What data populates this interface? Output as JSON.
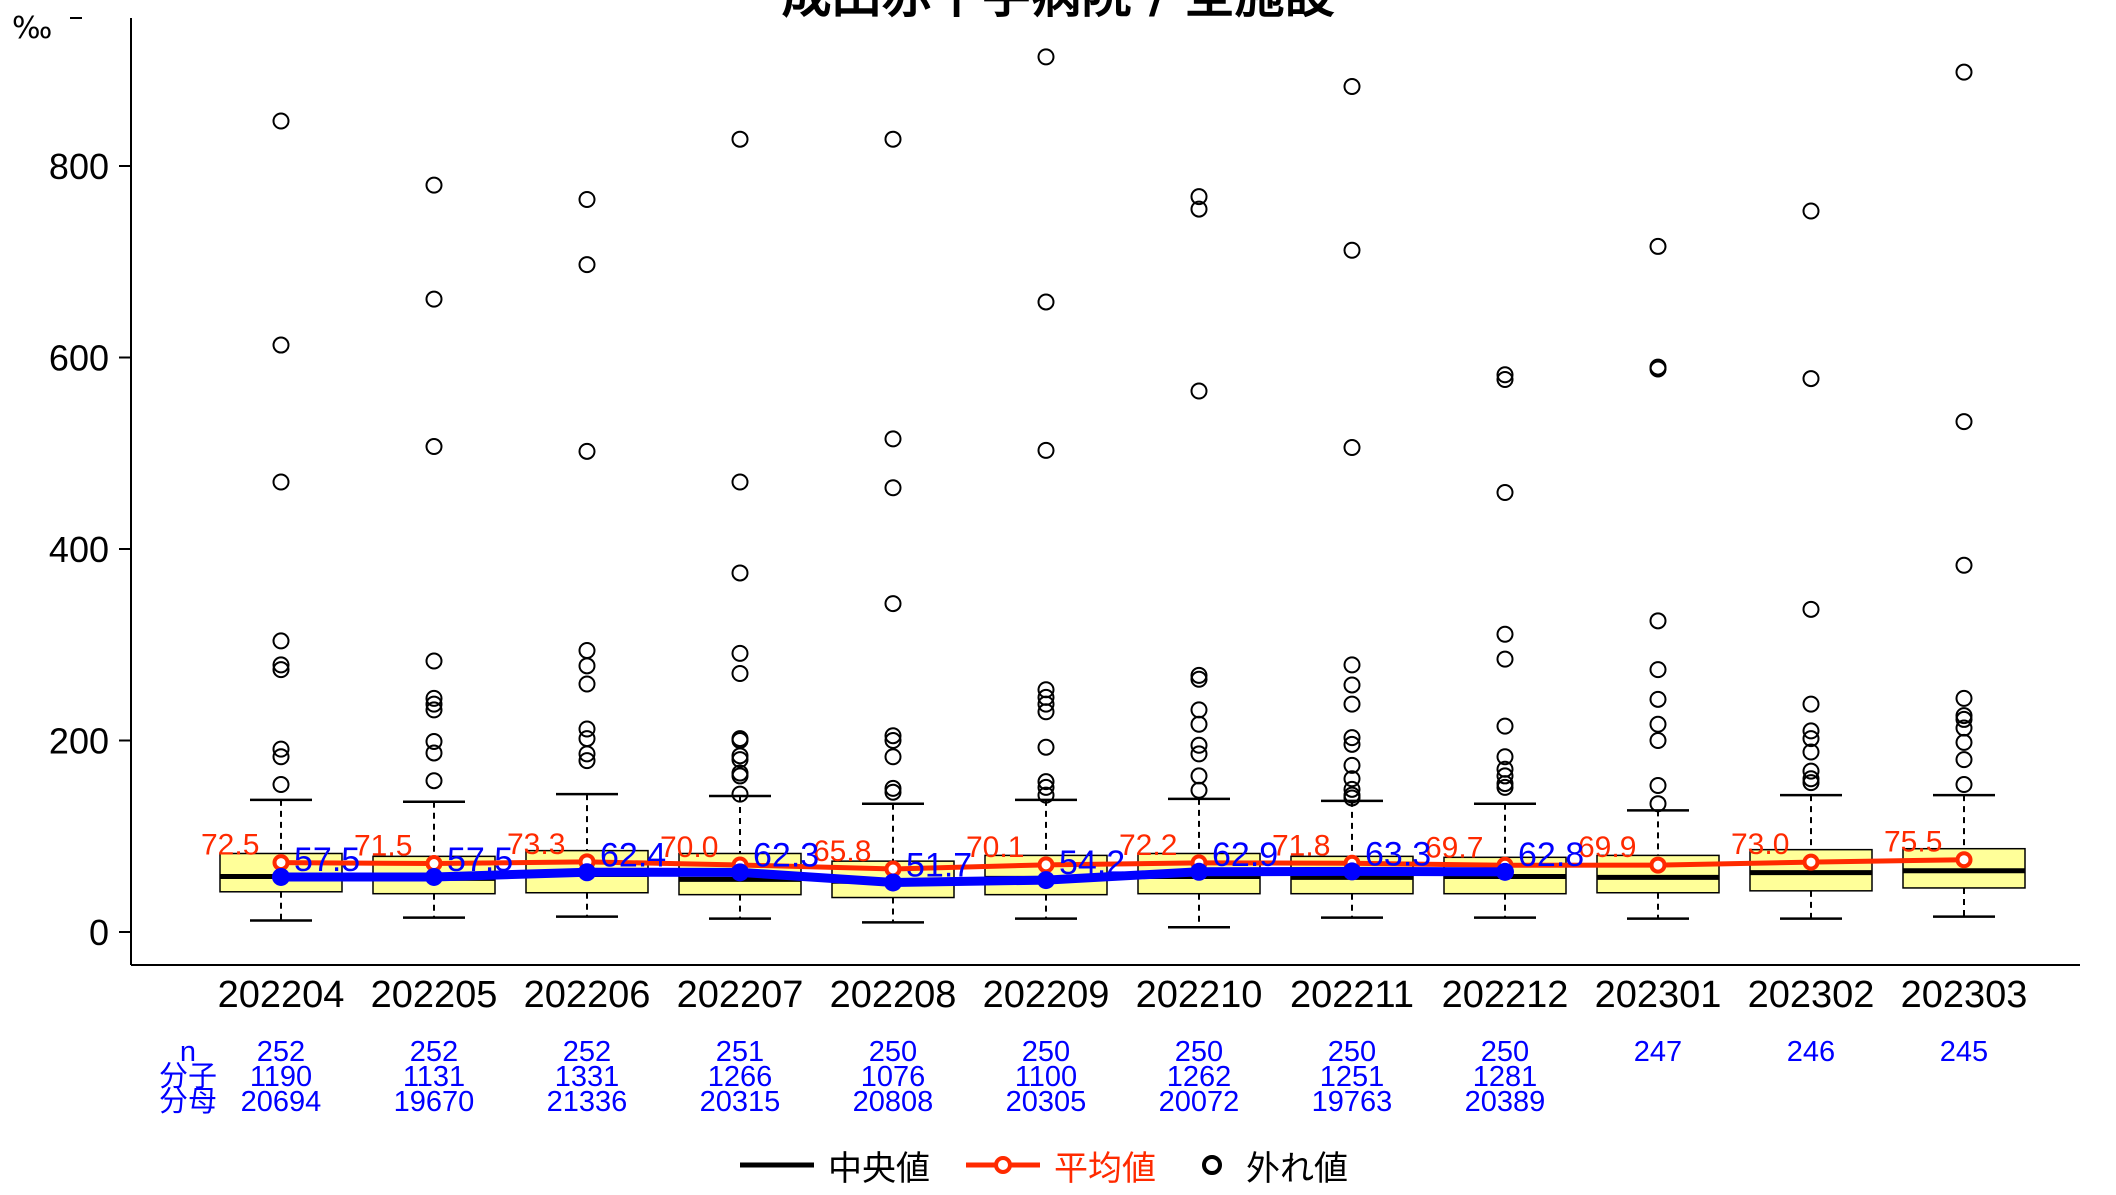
{
  "chart_data": {
    "type": "boxplot",
    "title": "成田赤十字病院 / 全施設",
    "ylabel": "‰",
    "ylim": [
      0,
      900
    ],
    "yticks": [
      0,
      200,
      400,
      600,
      800
    ],
    "categories": [
      "202204",
      "202205",
      "202206",
      "202207",
      "202208",
      "202209",
      "202210",
      "202211",
      "202212",
      "202301",
      "202302",
      "202303"
    ],
    "boxes": [
      {
        "q1": 42,
        "median": 58,
        "q3": 82,
        "whisker_low": 12,
        "whisker_high": 138
      },
      {
        "q1": 40,
        "median": 56,
        "q3": 79,
        "whisker_low": 15,
        "whisker_high": 136
      },
      {
        "q1": 41,
        "median": 60,
        "q3": 85,
        "whisker_low": 16,
        "whisker_high": 144
      },
      {
        "q1": 39,
        "median": 55,
        "q3": 82,
        "whisker_low": 14,
        "whisker_high": 142
      },
      {
        "q1": 36,
        "median": 53,
        "q3": 74,
        "whisker_low": 10,
        "whisker_high": 134
      },
      {
        "q1": 39,
        "median": 56,
        "q3": 80,
        "whisker_low": 14,
        "whisker_high": 138
      },
      {
        "q1": 40,
        "median": 58,
        "q3": 82,
        "whisker_low": 5,
        "whisker_high": 139
      },
      {
        "q1": 40,
        "median": 57,
        "q3": 79,
        "whisker_low": 15,
        "whisker_high": 137
      },
      {
        "q1": 40,
        "median": 58,
        "q3": 78,
        "whisker_low": 15,
        "whisker_high": 134
      },
      {
        "q1": 41,
        "median": 57,
        "q3": 80,
        "whisker_low": 14,
        "whisker_high": 127
      },
      {
        "q1": 43,
        "median": 62,
        "q3": 86,
        "whisker_low": 14,
        "whisker_high": 143
      },
      {
        "q1": 46,
        "median": 64,
        "q3": 87,
        "whisker_low": 16,
        "whisker_high": 143
      }
    ],
    "outliers": [
      [
        847,
        613,
        470,
        304,
        279,
        274,
        191,
        183,
        154
      ],
      [
        780,
        661,
        507,
        283,
        244,
        238,
        232,
        199,
        187,
        158
      ],
      [
        765,
        697,
        502,
        294,
        278,
        259,
        212,
        202,
        186,
        179
      ],
      [
        828,
        470,
        375,
        291,
        270,
        202,
        200,
        184,
        180,
        166,
        163,
        144
      ],
      [
        828,
        515,
        464,
        343,
        205,
        200,
        183,
        150,
        146
      ],
      [
        914,
        658,
        503,
        253,
        245,
        238,
        230,
        193,
        157,
        151,
        143
      ],
      [
        768,
        755,
        565,
        268,
        264,
        232,
        217,
        195,
        186,
        163,
        148
      ],
      [
        883,
        712,
        506,
        279,
        258,
        238,
        203,
        196,
        174,
        160,
        149,
        143,
        140
      ],
      [
        582,
        577,
        459,
        311,
        285,
        215,
        183,
        170,
        163,
        155,
        151
      ],
      [
        716,
        590,
        588,
        325,
        274,
        243,
        217,
        200,
        153,
        134
      ],
      [
        753,
        578,
        337,
        238,
        210,
        202,
        188,
        168,
        160,
        156
      ],
      [
        898,
        533,
        383,
        244,
        226,
        222,
        213,
        198,
        180,
        154
      ]
    ],
    "series": [
      {
        "name": "平均値",
        "values": [
          72.5,
          71.5,
          73.3,
          70.0,
          65.8,
          70.1,
          72.2,
          71.8,
          69.7,
          69.9,
          73.0,
          75.5
        ],
        "labels": [
          "72.5",
          "71.5",
          "73.3",
          "70.0",
          "65.8",
          "70.1",
          "72.2",
          "71.8",
          "69.7",
          "69.9",
          "73.0",
          "75.5"
        ],
        "color": "#ff2a00"
      },
      {
        "name": "",
        "values": [
          57.5,
          57.5,
          62.4,
          62.3,
          51.7,
          54.2,
          62.9,
          63.3,
          62.8,
          null,
          null,
          null
        ],
        "labels": [
          "57.5",
          "57.5",
          "62.4",
          "62.3",
          "51.7",
          "54.2",
          "62.9",
          "63.3",
          "62.8",
          "",
          "",
          ""
        ],
        "color": "#0000ff"
      }
    ],
    "table": {
      "row_labels": [
        "n",
        "分子",
        "分母"
      ],
      "n": [
        "252",
        "252",
        "252",
        "251",
        "250",
        "250",
        "250",
        "250",
        "250",
        "247",
        "246",
        "245"
      ],
      "num": [
        "1190",
        "1131",
        "1331",
        "1266",
        "1076",
        "1100",
        "1262",
        "1251",
        "1281",
        "",
        "",
        ""
      ],
      "den": [
        "20694",
        "19670",
        "21336",
        "20315",
        "20808",
        "20305",
        "20072",
        "19763",
        "20389",
        "",
        "",
        ""
      ]
    },
    "legend": {
      "median": "中央値",
      "mean": "平均値",
      "outlier": "外れ値",
      "position": "bottom"
    },
    "colors": {
      "box_fill": "#ffff99",
      "mean": "#ff2a00",
      "hospital": "#0000ff",
      "table_text": "#0000ff"
    }
  }
}
